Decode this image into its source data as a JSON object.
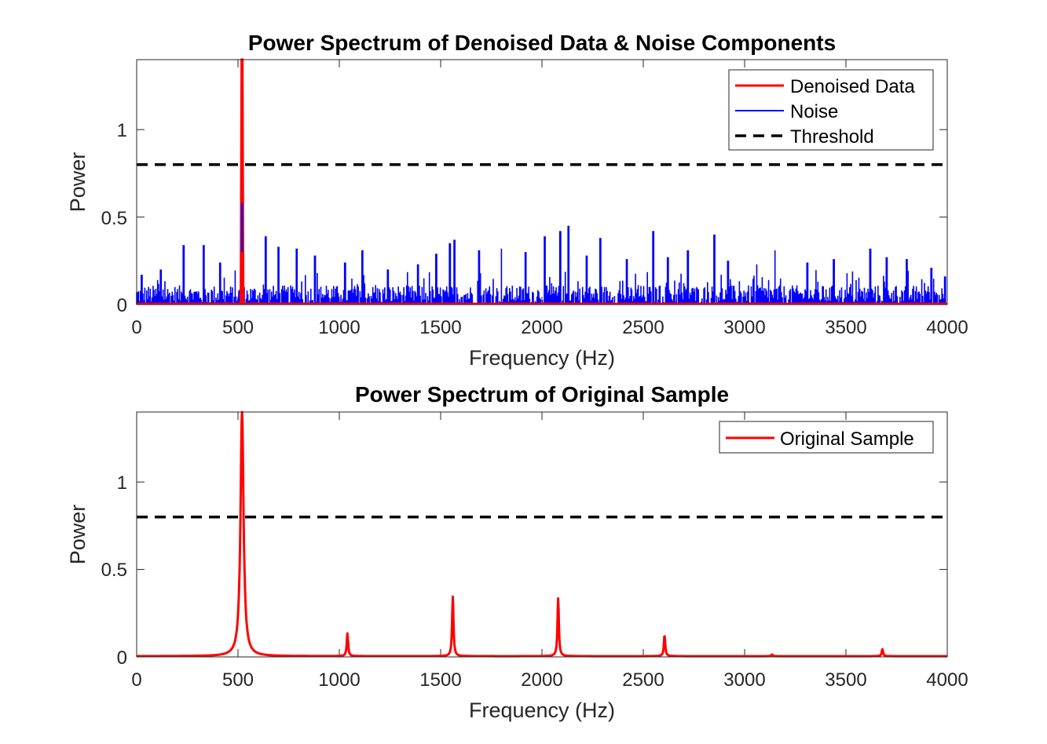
{
  "chart_data": [
    {
      "type": "line",
      "title": "Power Spectrum of Denoised Data & Noise Components",
      "xlabel": "Frequency (Hz)",
      "ylabel": "Power",
      "xlim": [
        0,
        4000
      ],
      "ylim": [
        0,
        1.4
      ],
      "x_ticks": [
        "0",
        "500",
        "1000",
        "1500",
        "2000",
        "2500",
        "3000",
        "3500",
        "4000"
      ],
      "y_ticks": [
        "0",
        "0.5",
        "1"
      ],
      "legend_position": "top-right",
      "threshold": 0.8,
      "noise_base": 0.09,
      "series": [
        {
          "name": "Denoised Data",
          "color": "#ff0000",
          "style": "solid",
          "peaks": [
            {
              "x": 520,
              "y": 1.4
            }
          ]
        },
        {
          "name": "Noise",
          "color": "#0000ff",
          "style": "solid",
          "peaks": [
            {
              "x": 25,
              "y": 0.17
            },
            {
              "x": 120,
              "y": 0.2
            },
            {
              "x": 230,
              "y": 0.34
            },
            {
              "x": 330,
              "y": 0.34
            },
            {
              "x": 410,
              "y": 0.24
            },
            {
              "x": 520,
              "y": 0.58
            },
            {
              "x": 635,
              "y": 0.39
            },
            {
              "x": 700,
              "y": 0.33
            },
            {
              "x": 790,
              "y": 0.32
            },
            {
              "x": 880,
              "y": 0.28
            },
            {
              "x": 1030,
              "y": 0.24
            },
            {
              "x": 1115,
              "y": 0.31
            },
            {
              "x": 1240,
              "y": 0.2
            },
            {
              "x": 1390,
              "y": 0.23
            },
            {
              "x": 1480,
              "y": 0.29
            },
            {
              "x": 1545,
              "y": 0.35
            },
            {
              "x": 1570,
              "y": 0.37
            },
            {
              "x": 1690,
              "y": 0.31
            },
            {
              "x": 1800,
              "y": 0.32
            },
            {
              "x": 1920,
              "y": 0.3
            },
            {
              "x": 2015,
              "y": 0.39
            },
            {
              "x": 2090,
              "y": 0.42
            },
            {
              "x": 2130,
              "y": 0.45
            },
            {
              "x": 2220,
              "y": 0.28
            },
            {
              "x": 2290,
              "y": 0.38
            },
            {
              "x": 2420,
              "y": 0.26
            },
            {
              "x": 2550,
              "y": 0.42
            },
            {
              "x": 2620,
              "y": 0.27
            },
            {
              "x": 2720,
              "y": 0.31
            },
            {
              "x": 2850,
              "y": 0.4
            },
            {
              "x": 2920,
              "y": 0.25
            },
            {
              "x": 3060,
              "y": 0.23
            },
            {
              "x": 3150,
              "y": 0.31
            },
            {
              "x": 3310,
              "y": 0.24
            },
            {
              "x": 3440,
              "y": 0.26
            },
            {
              "x": 3620,
              "y": 0.32
            },
            {
              "x": 3700,
              "y": 0.27
            },
            {
              "x": 3800,
              "y": 0.26
            },
            {
              "x": 3920,
              "y": 0.21
            },
            {
              "x": 3990,
              "y": 0.16
            }
          ]
        },
        {
          "name": "Threshold",
          "color": "#000000",
          "style": "dashed",
          "x": [
            0,
            4000
          ],
          "y": [
            0.8,
            0.8
          ]
        }
      ]
    },
    {
      "type": "line",
      "title": "Power Spectrum of Original Sample",
      "xlabel": "Frequency (Hz)",
      "ylabel": "Power",
      "xlim": [
        0,
        4000
      ],
      "ylim": [
        0,
        1.4
      ],
      "x_ticks": [
        "0",
        "500",
        "1000",
        "1500",
        "2000",
        "2500",
        "3000",
        "3500",
        "4000"
      ],
      "y_ticks": [
        "0",
        "0.5",
        "1"
      ],
      "legend_position": "top-right",
      "threshold": 0.8,
      "series": [
        {
          "name": "Original Sample",
          "color": "#ff0000",
          "style": "solid",
          "peaks": [
            {
              "x": 520,
              "y": 1.4
            },
            {
              "x": 1040,
              "y": 0.13
            },
            {
              "x": 1560,
              "y": 0.34
            },
            {
              "x": 2080,
              "y": 0.33
            },
            {
              "x": 2605,
              "y": 0.12
            },
            {
              "x": 3135,
              "y": 0.01
            },
            {
              "x": 3680,
              "y": 0.04
            }
          ]
        },
        {
          "name": "",
          "color": "#000000",
          "style": "dashed",
          "x": [
            0,
            4000
          ],
          "y": [
            0.8,
            0.8
          ]
        }
      ]
    }
  ]
}
